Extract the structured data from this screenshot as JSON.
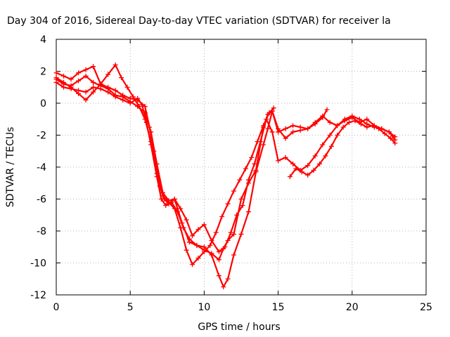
{
  "chart_data": {
    "type": "scatter",
    "title": "Day 304 of 2016, Sidereal Day-to-day VTEC variation (SDTVAR) for receiver la",
    "xlabel": "GPS time / hours",
    "ylabel": "SDTVAR / TECUs",
    "xlim": [
      0,
      25
    ],
    "ylim": [
      -12,
      4
    ],
    "xticks": [
      0,
      5,
      10,
      15,
      20,
      25
    ],
    "yticks": [
      -12,
      -10,
      -8,
      -6,
      -4,
      -2,
      0,
      2,
      4
    ],
    "grid": true,
    "marker": "plus",
    "color": "#ff0000",
    "series": [
      {
        "x": [
          0.0,
          0.5,
          1.0,
          1.5,
          2.0,
          2.5,
          3.0,
          3.5,
          4.0,
          4.5,
          5.0,
          5.5,
          6.0,
          6.3,
          6.6,
          7.0,
          7.3,
          7.6,
          8.0,
          8.5,
          9.0,
          9.5,
          10.0,
          10.5,
          11.0,
          11.3,
          11.6,
          12.0,
          12.5,
          13.0,
          13.5,
          14.0,
          14.3,
          14.6,
          15.0,
          15.5,
          16.0,
          16.5,
          17.0,
          17.5,
          18.0,
          18.3
        ],
        "y": [
          1.9,
          1.7,
          1.5,
          1.9,
          2.1,
          2.3,
          1.2,
          1.0,
          0.8,
          0.5,
          0.3,
          0.2,
          -0.2,
          -1.5,
          -3.0,
          -5.2,
          -6.0,
          -6.3,
          -6.0,
          -7.5,
          -8.7,
          -8.9,
          -9.2,
          -9.4,
          -9.8,
          -9.1,
          -8.6,
          -8.2,
          -6.0,
          -5.0,
          -4.2,
          -1.5,
          -0.7,
          -0.5,
          -1.8,
          -1.6,
          -1.4,
          -1.5,
          -1.6,
          -1.3,
          -0.9,
          -0.4
        ]
      },
      {
        "x": [
          0.0,
          0.5,
          1.0,
          1.5,
          2.0,
          2.5,
          3.0,
          3.5,
          4.0,
          4.5,
          5.0,
          5.5,
          5.8,
          6.1,
          6.4,
          6.8,
          7.1,
          7.4,
          7.8,
          8.2,
          8.6,
          9.0,
          9.5,
          10.0,
          10.5,
          11.0,
          11.3,
          11.6,
          12.0,
          12.5,
          13.0,
          13.5,
          14.0,
          14.3,
          14.6,
          15.0,
          15.5,
          16.0,
          16.5,
          17.0,
          17.5,
          18.0,
          18.5,
          19.0,
          19.5,
          20.0,
          20.5,
          21.0,
          21.5,
          22.0,
          22.5,
          22.9
        ],
        "y": [
          1.3,
          1.0,
          0.9,
          0.8,
          0.7,
          1.0,
          0.9,
          0.7,
          0.4,
          0.2,
          0.0,
          0.3,
          -0.1,
          -1.2,
          -2.6,
          -4.6,
          -6.0,
          -6.4,
          -6.2,
          -6.8,
          -7.8,
          -8.5,
          -8.9,
          -9.0,
          -9.5,
          -10.8,
          -11.5,
          -11.0,
          -9.5,
          -8.2,
          -6.8,
          -4.3,
          -2.6,
          -1.6,
          -0.5,
          -1.6,
          -2.2,
          -1.8,
          -1.7,
          -1.6,
          -1.2,
          -0.8,
          -1.2,
          -1.4,
          -1.1,
          -0.9,
          -1.2,
          -1.0,
          -1.4,
          -1.6,
          -1.8,
          -2.1
        ]
      },
      {
        "x": [
          0.0,
          0.5,
          1.0,
          1.5,
          2.0,
          2.5,
          3.0,
          3.5,
          4.0,
          4.5,
          5.0,
          5.5,
          6.0,
          6.4,
          6.8,
          7.2,
          7.6,
          8.0,
          8.4,
          8.8,
          9.2,
          9.6,
          10.0,
          10.5,
          11.0,
          11.4,
          11.8,
          12.2,
          12.6,
          13.0,
          13.4,
          13.8,
          14.2,
          14.6,
          15.0,
          15.5,
          16.0,
          16.5,
          17.0,
          17.5,
          18.0,
          18.5,
          19.0,
          19.5,
          20.0,
          20.5,
          21.0,
          21.5,
          22.0,
          22.5,
          22.9
        ],
        "y": [
          1.5,
          1.2,
          1.1,
          1.4,
          1.7,
          1.3,
          1.1,
          0.9,
          0.5,
          0.4,
          0.1,
          -0.2,
          -0.6,
          -1.8,
          -3.8,
          -5.6,
          -6.1,
          -6.0,
          -6.6,
          -7.3,
          -8.3,
          -7.9,
          -7.6,
          -8.6,
          -9.3,
          -9.0,
          -8.1,
          -7.0,
          -6.4,
          -4.8,
          -3.8,
          -2.4,
          -1.0,
          -1.8,
          -3.6,
          -3.4,
          -3.8,
          -4.2,
          -3.9,
          -3.3,
          -2.6,
          -2.0,
          -1.4,
          -1.0,
          -0.8,
          -1.0,
          -1.3,
          -1.5,
          -1.6,
          -1.8,
          -2.3
        ]
      },
      {
        "x": [
          0.0,
          0.5,
          1.0,
          1.5,
          2.0,
          2.5,
          3.0,
          3.5,
          4.0,
          4.4,
          4.8,
          5.2,
          5.6,
          6.0,
          6.4,
          6.8,
          7.2,
          7.6,
          8.0,
          8.4,
          8.8,
          9.2,
          9.6,
          10.0,
          10.4,
          10.8,
          11.2,
          11.6,
          12.0,
          12.4,
          12.8,
          13.2,
          13.6,
          14.0,
          14.4,
          14.7
        ],
        "y": [
          1.6,
          1.3,
          1.0,
          0.6,
          0.2,
          0.7,
          1.2,
          1.8,
          2.4,
          1.6,
          1.0,
          0.4,
          -0.2,
          -1.0,
          -2.4,
          -4.4,
          -5.8,
          -6.2,
          -6.6,
          -7.8,
          -9.2,
          -10.1,
          -9.7,
          -9.3,
          -8.9,
          -8.1,
          -7.1,
          -6.3,
          -5.5,
          -4.8,
          -4.1,
          -3.4,
          -2.4,
          -1.4,
          -0.6,
          -0.3
        ]
      },
      {
        "x": [
          15.8,
          16.2,
          16.6,
          17.0,
          17.4,
          17.8,
          18.2,
          18.6,
          19.0,
          19.4,
          19.8,
          20.2,
          20.6,
          21.0,
          21.4,
          21.8,
          22.2,
          22.6,
          22.9
        ],
        "y": [
          -4.6,
          -4.1,
          -4.3,
          -4.5,
          -4.2,
          -3.8,
          -3.3,
          -2.7,
          -2.0,
          -1.5,
          -1.2,
          -1.1,
          -1.3,
          -1.5,
          -1.4,
          -1.6,
          -1.9,
          -2.2,
          -2.5
        ]
      }
    ]
  }
}
